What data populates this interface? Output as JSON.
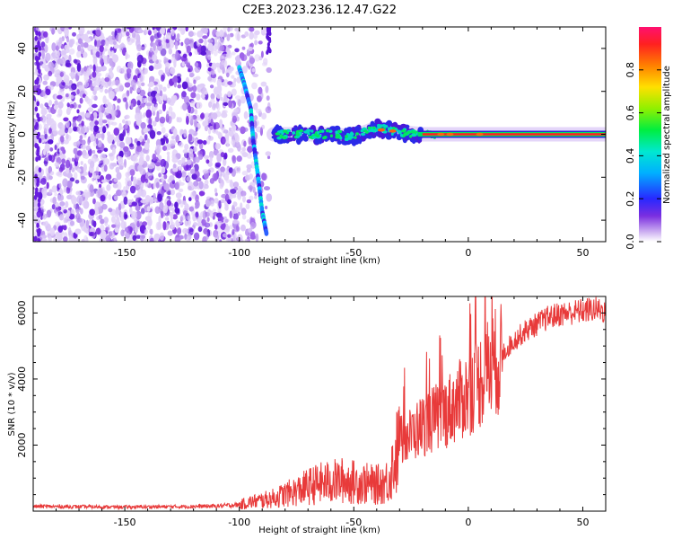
{
  "title": "C2E3.2023.236.12.47.G22",
  "chart_data": [
    {
      "type": "heatmap",
      "xlabel": "Height of straight line (km)",
      "ylabel": "Frequency (Hz)",
      "xlim": [
        -190,
        60
      ],
      "ylim": [
        -50,
        50
      ],
      "xticks": [
        -150,
        -100,
        -50,
        0,
        50
      ],
      "yticks": [
        40,
        20,
        0,
        -20,
        -40
      ],
      "colorbar": {
        "label": "Normalized spectral amplitude",
        "range": [
          0,
          1
        ],
        "ticks": [
          0.0,
          0.2,
          0.4,
          0.6,
          0.8
        ]
      },
      "features": {
        "noise_region_x": [
          -190,
          -87
        ],
        "diagonal_trace": [
          [
            -100,
            31
          ],
          [
            -98,
            24
          ],
          [
            -95,
            12
          ],
          [
            -94,
            -2
          ],
          [
            -92,
            -18
          ],
          [
            -90,
            -36
          ],
          [
            -88,
            -47
          ]
        ],
        "signal_line": [
          [
            -85,
            0
          ],
          [
            -75,
            0
          ],
          [
            -60,
            0
          ],
          [
            -50,
            -1
          ],
          [
            -40,
            3
          ],
          [
            -35,
            2
          ],
          [
            -30,
            1
          ],
          [
            -20,
            0
          ],
          [
            0,
            0
          ],
          [
            60,
            0
          ]
        ]
      }
    },
    {
      "type": "line",
      "xlabel": "Height of straight line (km)",
      "ylabel": "SNR (10 * v/v)",
      "xlim": [
        -190,
        60
      ],
      "ylim": [
        0,
        6500
      ],
      "xticks": [
        -150,
        -100,
        -50,
        0,
        50
      ],
      "yticks": [
        2000,
        4000,
        6000
      ],
      "series": [
        {
          "color": "#e83a3a",
          "x": [
            -190,
            -170,
            -150,
            -130,
            -110,
            -100,
            -95,
            -90,
            -85,
            -80,
            -75,
            -70,
            -65,
            -60,
            -55,
            -50,
            -45,
            -40,
            -35,
            -30,
            -25,
            -20,
            -15,
            -10,
            -5,
            0,
            5,
            10,
            15,
            20,
            25,
            30,
            35,
            40,
            45,
            50,
            55,
            60
          ],
          "y": [
            150,
            140,
            130,
            140,
            160,
            200,
            300,
            350,
            420,
            550,
            650,
            800,
            900,
            950,
            1000,
            950,
            900,
            850,
            1000,
            2200,
            2400,
            2700,
            2900,
            3100,
            3400,
            3700,
            4100,
            4600,
            4800,
            5200,
            5500,
            5700,
            5900,
            6000,
            6050,
            6100,
            6150,
            6100
          ]
        }
      ]
    }
  ]
}
